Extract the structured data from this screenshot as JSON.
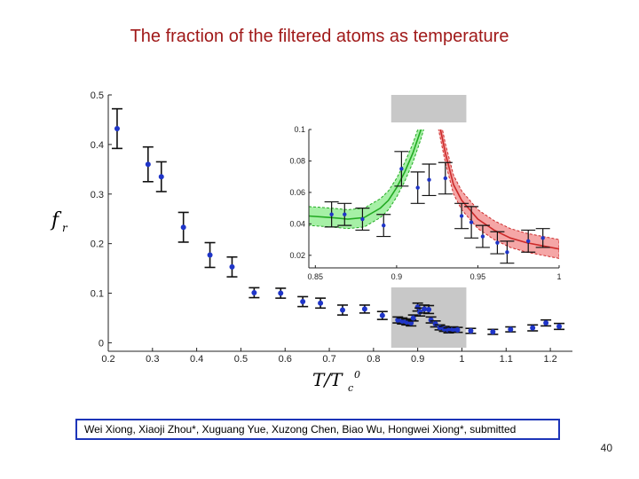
{
  "slide": {
    "title": "The fraction of the filtered atoms as temperature",
    "citation": "Wei Xiong, Xiaoji Zhou*, Xuguang Yue, Xuzong Chen, Biao Wu, Hongwei Xiong*, submitted",
    "page_number": "40"
  },
  "chart_data": [
    {
      "type": "scatter",
      "title": "",
      "xlabel": "T/T₀",
      "xlabel_main": "T/T",
      "xlabel_sub": "c",
      "xlabel_sup": "0",
      "ylabel": "f",
      "ylabel_sub": "r",
      "xlim": [
        0.2,
        1.25
      ],
      "ylim": [
        -0.01,
        0.5
      ],
      "xticks": [
        "0.2",
        "0.3",
        "0.4",
        "0.5",
        "0.6",
        "0.7",
        "0.8",
        "0.9",
        "1",
        "1.1",
        "1.2"
      ],
      "xtick_values": [
        0.2,
        0.3,
        0.4,
        0.5,
        0.6,
        0.7,
        0.8,
        0.9,
        1.0,
        1.1,
        1.2
      ],
      "yticks": [
        "0",
        "0.1",
        "0.2",
        "0.3",
        "0.4",
        "0.5"
      ],
      "ytick_values": [
        0,
        0.1,
        0.2,
        0.3,
        0.4,
        0.5
      ],
      "highlight_range": [
        0.84,
        1.01
      ],
      "highlight_color": "#c8c8c8",
      "marker_color": "#1f35c8",
      "series": [
        {
          "points": [
            {
              "x": 0.22,
              "y": 0.432,
              "err": 0.04
            },
            {
              "x": 0.29,
              "y": 0.36,
              "err": 0.035
            },
            {
              "x": 0.32,
              "y": 0.335,
              "err": 0.03
            },
            {
              "x": 0.37,
              "y": 0.233,
              "err": 0.03
            },
            {
              "x": 0.43,
              "y": 0.177,
              "err": 0.025
            },
            {
              "x": 0.48,
              "y": 0.153,
              "err": 0.02
            },
            {
              "x": 0.53,
              "y": 0.101,
              "err": 0.01
            },
            {
              "x": 0.59,
              "y": 0.1,
              "err": 0.01
            },
            {
              "x": 0.64,
              "y": 0.083,
              "err": 0.01
            },
            {
              "x": 0.68,
              "y": 0.08,
              "err": 0.01
            },
            {
              "x": 0.73,
              "y": 0.066,
              "err": 0.01
            },
            {
              "x": 0.78,
              "y": 0.068,
              "err": 0.008
            },
            {
              "x": 0.82,
              "y": 0.055,
              "err": 0.008
            },
            {
              "x": 0.855,
              "y": 0.046,
              "err": 0.006
            },
            {
              "x": 0.865,
              "y": 0.044,
              "err": 0.006
            },
            {
              "x": 0.875,
              "y": 0.042,
              "err": 0.006
            },
            {
              "x": 0.885,
              "y": 0.04,
              "err": 0.006
            },
            {
              "x": 0.89,
              "y": 0.05,
              "err": 0.006
            },
            {
              "x": 0.9,
              "y": 0.072,
              "err": 0.008
            },
            {
              "x": 0.905,
              "y": 0.062,
              "err": 0.008
            },
            {
              "x": 0.915,
              "y": 0.068,
              "err": 0.008
            },
            {
              "x": 0.925,
              "y": 0.067,
              "err": 0.008
            },
            {
              "x": 0.93,
              "y": 0.046,
              "err": 0.006
            },
            {
              "x": 0.94,
              "y": 0.038,
              "err": 0.006
            },
            {
              "x": 0.95,
              "y": 0.031,
              "err": 0.005
            },
            {
              "x": 0.96,
              "y": 0.028,
              "err": 0.005
            },
            {
              "x": 0.97,
              "y": 0.025,
              "err": 0.005
            },
            {
              "x": 0.98,
              "y": 0.027,
              "err": 0.005
            },
            {
              "x": 0.99,
              "y": 0.026,
              "err": 0.005
            },
            {
              "x": 1.02,
              "y": 0.024,
              "err": 0.005
            },
            {
              "x": 1.07,
              "y": 0.022,
              "err": 0.005
            },
            {
              "x": 1.11,
              "y": 0.027,
              "err": 0.005
            },
            {
              "x": 1.16,
              "y": 0.03,
              "err": 0.006
            },
            {
              "x": 1.19,
              "y": 0.04,
              "err": 0.006
            },
            {
              "x": 1.22,
              "y": 0.033,
              "err": 0.006
            }
          ]
        }
      ]
    },
    {
      "type": "scatter",
      "title": "",
      "xlim": [
        0.846,
        1.0
      ],
      "ylim": [
        0.012,
        0.1
      ],
      "xticks": [
        "0.85",
        "0.9",
        "0.95",
        "1"
      ],
      "xtick_values": [
        0.85,
        0.9,
        0.95,
        1.0
      ],
      "yticks": [
        "0.02",
        "0.04",
        "0.06",
        "0.08",
        "0.1"
      ],
      "ytick_values": [
        0.02,
        0.04,
        0.06,
        0.08,
        0.1
      ],
      "marker_color": "#1f35c8",
      "series": [
        {
          "color": "#22aa22",
          "band_color": "#a6f0a6",
          "fit_x": [
            0.846,
            0.86,
            0.87,
            0.88,
            0.89,
            0.895,
            0.9,
            0.905,
            0.91,
            0.915,
            0.92
          ],
          "fit_y": [
            0.045,
            0.044,
            0.043,
            0.044,
            0.05,
            0.055,
            0.063,
            0.073,
            0.085,
            0.1,
            0.118
          ],
          "band_halfwidth": 0.006,
          "points": [
            {
              "x": 0.86,
              "y": 0.046,
              "err": 0.008
            },
            {
              "x": 0.868,
              "y": 0.046,
              "err": 0.007
            },
            {
              "x": 0.879,
              "y": 0.043,
              "err": 0.007
            },
            {
              "x": 0.892,
              "y": 0.039,
              "err": 0.007
            },
            {
              "x": 0.903,
              "y": 0.075,
              "err": 0.011
            },
            {
              "x": 0.913,
              "y": 0.063,
              "err": 0.01
            },
            {
              "x": 0.92,
              "y": 0.068,
              "err": 0.01
            }
          ]
        },
        {
          "color": "#cc2a2a",
          "band_color": "#f5a6a6",
          "fit_x": [
            0.925,
            0.93,
            0.935,
            0.94,
            0.95,
            0.96,
            0.97,
            0.98,
            0.99,
            1.0
          ],
          "fit_y": [
            0.11,
            0.085,
            0.065,
            0.055,
            0.043,
            0.036,
            0.031,
            0.028,
            0.026,
            0.024
          ],
          "band_halfwidth": 0.006,
          "points": [
            {
              "x": 0.93,
              "y": 0.069,
              "err": 0.01
            },
            {
              "x": 0.94,
              "y": 0.045,
              "err": 0.008
            },
            {
              "x": 0.946,
              "y": 0.041,
              "err": 0.01
            },
            {
              "x": 0.953,
              "y": 0.032,
              "err": 0.007
            },
            {
              "x": 0.962,
              "y": 0.028,
              "err": 0.007
            },
            {
              "x": 0.968,
              "y": 0.022,
              "err": 0.007
            },
            {
              "x": 0.981,
              "y": 0.029,
              "err": 0.007
            },
            {
              "x": 0.99,
              "y": 0.031,
              "err": 0.006
            }
          ]
        }
      ]
    }
  ]
}
